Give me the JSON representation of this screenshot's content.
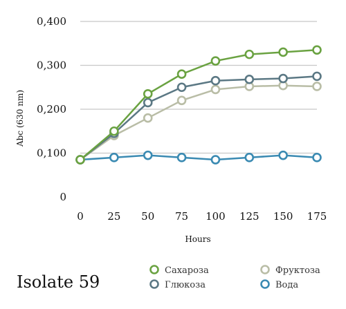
{
  "chart_data": {
    "type": "line",
    "x": [
      0,
      25,
      50,
      75,
      100,
      125,
      150,
      175
    ],
    "xlabel": "Hours",
    "ylabel": "Abc (630 nm)",
    "ylim": [
      0,
      0.4
    ],
    "yticks": [
      "0",
      "0,100",
      "0,200",
      "0,300",
      "0,400"
    ],
    "xticks": [
      "0",
      "25",
      "50",
      "75",
      "100",
      "125",
      "150",
      "175"
    ],
    "grid": true,
    "legend_position": "bottom-right",
    "series": [
      {
        "name": "Сахароза",
        "color": "#6aa241",
        "values": [
          0.085,
          0.15,
          0.235,
          0.28,
          0.31,
          0.325,
          0.33,
          0.335
        ]
      },
      {
        "name": "Фруктоза",
        "color": "#b9bda6",
        "values": [
          0.085,
          0.14,
          0.18,
          0.22,
          0.245,
          0.252,
          0.254,
          0.252
        ]
      },
      {
        "name": "Глюкоза",
        "color": "#5b7884",
        "values": [
          0.085,
          0.145,
          0.215,
          0.25,
          0.265,
          0.268,
          0.27,
          0.275
        ]
      },
      {
        "name": "Вода",
        "color": "#3a8ab2",
        "values": [
          0.085,
          0.09,
          0.095,
          0.09,
          0.085,
          0.09,
          0.095,
          0.09
        ]
      }
    ]
  },
  "caption": "Isolate 59"
}
